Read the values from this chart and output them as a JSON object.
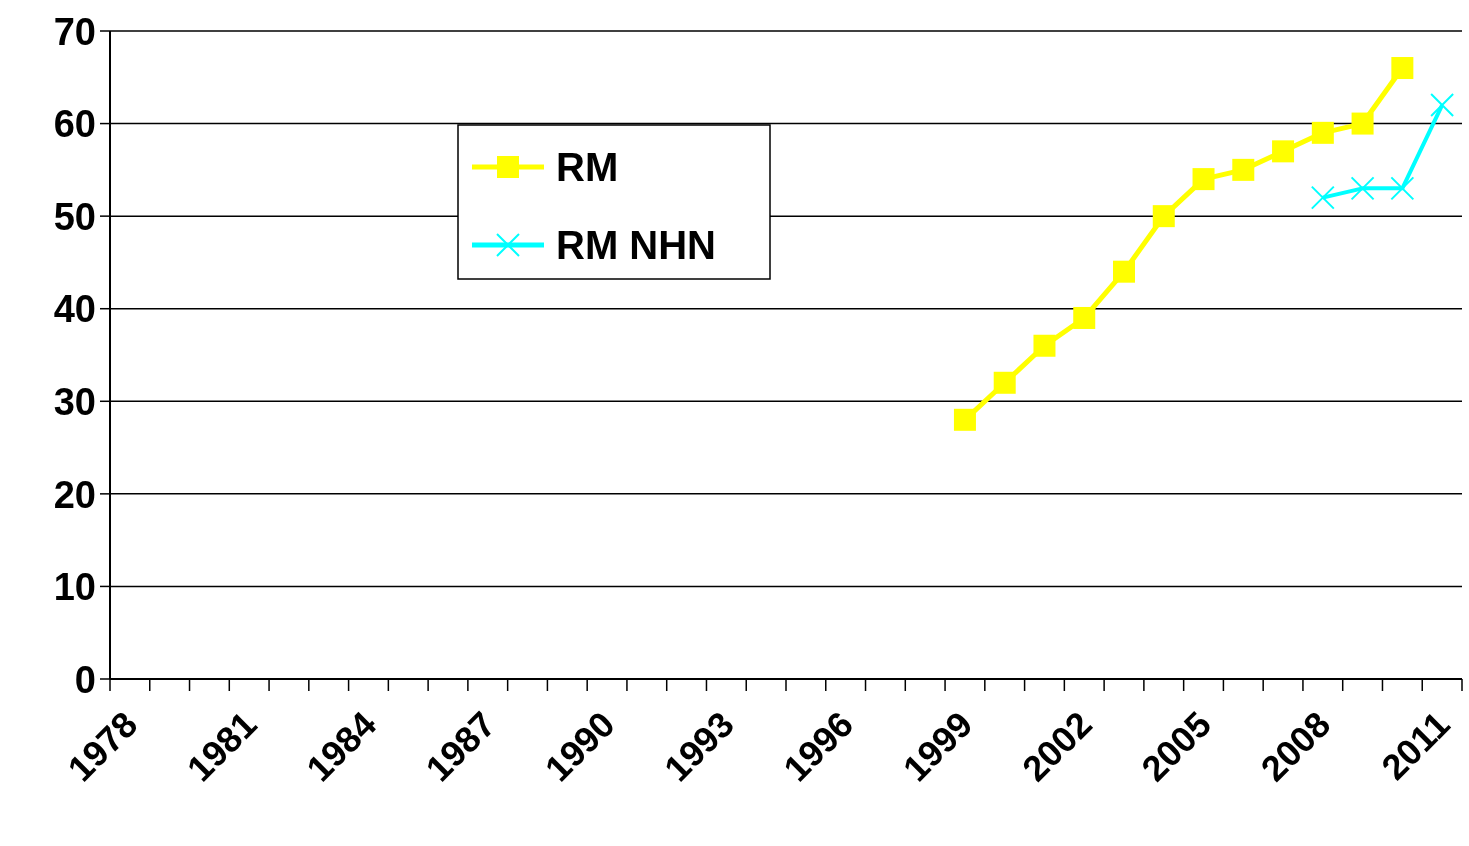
{
  "chart_data": {
    "type": "line",
    "categories": [
      "1978",
      null,
      null,
      "1981",
      null,
      null,
      "1984",
      null,
      null,
      "1987",
      null,
      null,
      "1990",
      null,
      null,
      "1993",
      null,
      null,
      "1996",
      null,
      null,
      "1999",
      null,
      null,
      "2002",
      null,
      null,
      "2005",
      null,
      null,
      "2008",
      null,
      null,
      "2011"
    ],
    "series": [
      {
        "name": "RM",
        "color": "#ffff00",
        "marker": "square",
        "values": [
          null,
          null,
          null,
          null,
          null,
          null,
          null,
          null,
          null,
          null,
          null,
          null,
          null,
          null,
          null,
          null,
          null,
          null,
          null,
          null,
          null,
          28,
          32,
          36,
          39,
          44,
          50,
          54,
          55,
          57,
          59,
          60,
          66,
          null
        ]
      },
      {
        "name": "RM NHN",
        "color": "#00ffff",
        "marker": "cross",
        "values": [
          null,
          null,
          null,
          null,
          null,
          null,
          null,
          null,
          null,
          null,
          null,
          null,
          null,
          null,
          null,
          null,
          null,
          null,
          null,
          null,
          null,
          null,
          null,
          null,
          null,
          null,
          null,
          null,
          null,
          null,
          52,
          53,
          53,
          62
        ]
      }
    ],
    "ylim": [
      0,
      70
    ],
    "yticks": [
      0,
      10,
      20,
      30,
      40,
      50,
      60,
      70
    ],
    "grid": "y",
    "legend": "top left",
    "line_style": "solid"
  }
}
